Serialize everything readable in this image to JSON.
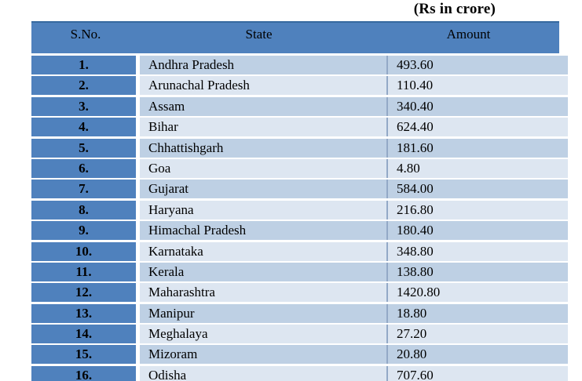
{
  "page": {
    "units_label": "(Rs in crore)"
  },
  "colors": {
    "header_bg": "#4f81bd",
    "sno_column_bg": "#4f81bd",
    "row_band_dark": "#bed0e4",
    "row_band_light": "#dde6f1",
    "header_top_border": "#36699f",
    "column_divider": "#93a9c7",
    "text": "#000000",
    "page_bg": "#ffffff"
  },
  "table": {
    "headers": {
      "sno": "S.No.",
      "state": "State",
      "amount": "Amount"
    },
    "rows": [
      {
        "sno": "1.",
        "state": "Andhra Pradesh",
        "amount": "493.60"
      },
      {
        "sno": "2.",
        "state": "Arunachal Pradesh",
        "amount": "110.40"
      },
      {
        "sno": "3.",
        "state": "Assam",
        "amount": "340.40"
      },
      {
        "sno": "4.",
        "state": "Bihar",
        "amount": "624.40"
      },
      {
        "sno": "5.",
        "state": "Chhattishgarh",
        "amount": "181.60"
      },
      {
        "sno": "6.",
        "state": "Goa",
        "amount": "4.80"
      },
      {
        "sno": "7.",
        "state": "Gujarat",
        "amount": "584.00"
      },
      {
        "sno": "8.",
        "state": "Haryana",
        "amount": "216.80"
      },
      {
        "sno": "9.",
        "state": "Himachal Pradesh",
        "amount": "180.40"
      },
      {
        "sno": "10.",
        "state": "Karnataka",
        "amount": "348.80"
      },
      {
        "sno": "11.",
        "state": "Kerala",
        "amount": "138.80"
      },
      {
        "sno": "12.",
        "state": "Maharashtra",
        "amount": "1420.80"
      },
      {
        "sno": "13.",
        "state": "Manipur",
        "amount": "18.80"
      },
      {
        "sno": "14.",
        "state": "Meghalaya",
        "amount": "27.20"
      },
      {
        "sno": "15.",
        "state": "Mizoram",
        "amount": "20.80"
      },
      {
        "sno": "16.",
        "state": "Odisha",
        "amount": "707.60"
      }
    ]
  }
}
